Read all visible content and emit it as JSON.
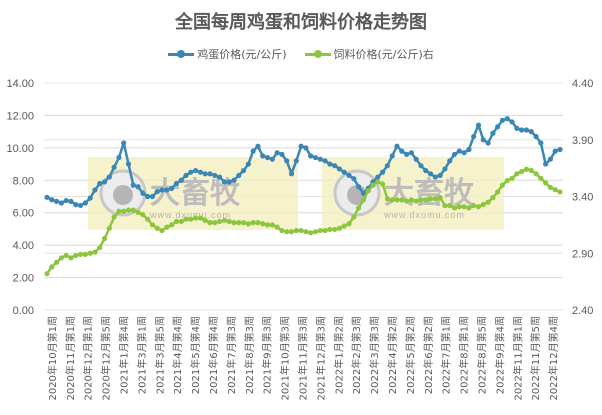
{
  "title": "全国每周鸡蛋和饲料价格走势图",
  "legend": [
    {
      "label": "鸡蛋价格(元/公斤)",
      "color": "#3A87B5"
    },
    {
      "label": "饲料价格(元/公斤)右",
      "color": "#8CC63F"
    }
  ],
  "watermark": {
    "text": "大畜牧",
    "url_text": "www.dxumu.com"
  },
  "chart_data": {
    "type": "line",
    "title": "全国每周鸡蛋和饲料价格走势图",
    "xlabel": "",
    "ylabel_left": "鸡蛋价格(元/公斤)",
    "ylabel_right": "饲料价格(元/公斤)",
    "ylim_left": [
      0,
      14
    ],
    "ylim_right": [
      2.4,
      4.4
    ],
    "yticks_left": [
      "0.00",
      "2.00",
      "4.00",
      "6.00",
      "8.00",
      "10.00",
      "12.00",
      "14.00"
    ],
    "yticks_right": [
      "2.40",
      "2.90",
      "3.40",
      "3.90",
      "4.40"
    ],
    "grid": true,
    "legend_position": "top",
    "categories": [
      "2020年10月第1周",
      "2020年11月第1周",
      "2020年12月第1周",
      "2020年12月第5周",
      "2021年1月第4周",
      "2021年3月第1周",
      "2021年3月第5周",
      "2021年4月第4周",
      "2021年5月第4周",
      "2021年6月第4周",
      "2021年7月第3周",
      "2021年8月第3周",
      "2021年9月第3周",
      "2021年10月第3周",
      "2021年11月第3周",
      "2021年12月第3周",
      "2022年1月第2周",
      "2022年2月第3周",
      "2022年3月第3周",
      "2022年4月第2周",
      "2022年5月第2周",
      "2022年6月第2周",
      "2022年7月第1周",
      "2022年8月第1周",
      "2022年8月第5周",
      "2022年9月第4周",
      "2022年11月第1周",
      "2022年11月第5周",
      "2022年12月第4周"
    ],
    "series": [
      {
        "name": "鸡蛋价格(元/公斤)",
        "axis": "left",
        "color": "#3A87B5",
        "values": [
          6.95,
          6.8,
          6.7,
          6.6,
          6.75,
          6.7,
          6.5,
          6.45,
          6.6,
          6.9,
          7.4,
          7.8,
          7.9,
          8.2,
          8.8,
          9.4,
          10.3,
          9.0,
          7.7,
          7.6,
          7.2,
          7.0,
          7.0,
          7.3,
          7.4,
          7.4,
          7.5,
          7.8,
          8.0,
          8.3,
          8.5,
          8.6,
          8.5,
          8.4,
          8.4,
          8.3,
          8.2,
          7.9,
          7.9,
          8.0,
          8.3,
          8.6,
          9.0,
          9.8,
          10.1,
          9.5,
          9.4,
          9.3,
          9.7,
          9.6,
          9.2,
          8.4,
          9.2,
          10.1,
          10.0,
          9.5,
          9.4,
          9.3,
          9.2,
          9.0,
          8.9,
          8.7,
          8.5,
          8.3,
          8.1,
          7.6,
          7.2,
          7.5,
          7.9,
          8.2,
          8.5,
          8.9,
          9.5,
          10.1,
          9.8,
          9.6,
          9.7,
          9.3,
          8.9,
          8.6,
          8.4,
          8.2,
          8.3,
          8.7,
          9.2,
          9.6,
          9.8,
          9.7,
          9.9,
          10.7,
          11.4,
          10.5,
          10.3,
          10.9,
          11.3,
          11.7,
          11.8,
          11.6,
          11.2,
          11.1,
          11.1,
          11.0,
          10.7,
          10.3,
          9.0,
          9.3,
          9.8,
          9.9
        ]
      },
      {
        "name": "饲料价格(元/公斤)右",
        "axis": "right",
        "color": "#8CC63F",
        "values": [
          2.72,
          2.78,
          2.82,
          2.86,
          2.88,
          2.86,
          2.88,
          2.89,
          2.89,
          2.9,
          2.91,
          2.95,
          3.03,
          3.12,
          3.22,
          3.27,
          3.27,
          3.28,
          3.28,
          3.26,
          3.24,
          3.2,
          3.15,
          3.12,
          3.1,
          3.13,
          3.15,
          3.18,
          3.18,
          3.2,
          3.2,
          3.21,
          3.21,
          3.19,
          3.17,
          3.17,
          3.18,
          3.19,
          3.18,
          3.17,
          3.17,
          3.17,
          3.16,
          3.17,
          3.17,
          3.16,
          3.15,
          3.15,
          3.13,
          3.1,
          3.09,
          3.09,
          3.1,
          3.1,
          3.09,
          3.08,
          3.09,
          3.1,
          3.1,
          3.11,
          3.11,
          3.12,
          3.14,
          3.16,
          3.22,
          3.3,
          3.37,
          3.45,
          3.5,
          3.53,
          3.51,
          3.38,
          3.37,
          3.37,
          3.37,
          3.36,
          3.37,
          3.36,
          3.37,
          3.37,
          3.38,
          3.38,
          3.39,
          3.32,
          3.32,
          3.3,
          3.31,
          3.31,
          3.3,
          3.32,
          3.31,
          3.33,
          3.35,
          3.39,
          3.44,
          3.5,
          3.54,
          3.56,
          3.6,
          3.62,
          3.64,
          3.63,
          3.6,
          3.56,
          3.52,
          3.48,
          3.46,
          3.44
        ]
      }
    ]
  }
}
